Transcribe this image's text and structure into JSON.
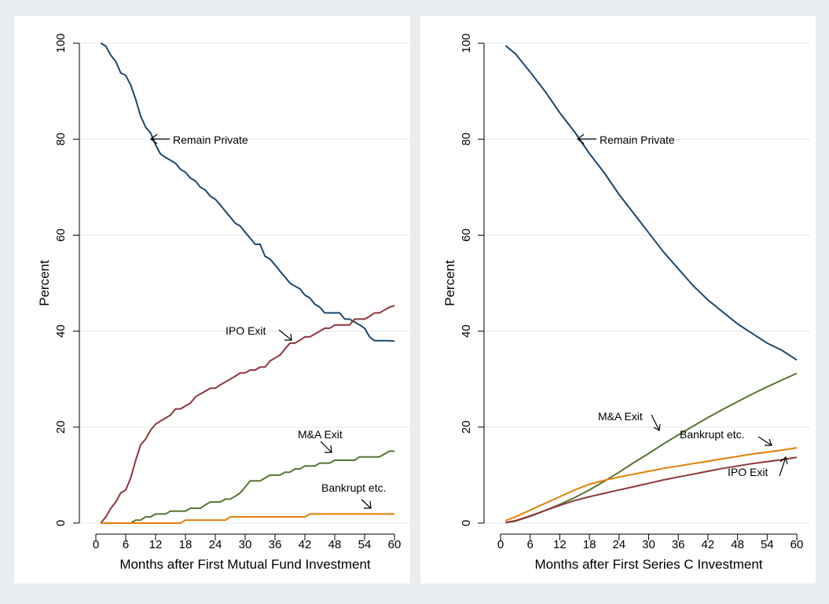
{
  "colors": {
    "background": "#e8edf1",
    "panel": "#ffffff",
    "grid": "#e8edf1",
    "remain_private": "#1a476f",
    "ipo_exit": "#90353b",
    "ma_exit": "#55752f",
    "bankrupt": "#e37e00"
  },
  "chart_data": [
    {
      "type": "line",
      "xlabel": "Months after First Mutual Fund Investment",
      "ylabel": "Percent",
      "xlim": [
        0,
        60
      ],
      "ylim": [
        0,
        100
      ],
      "xticks": [
        "0",
        "6",
        "12",
        "18",
        "24",
        "30",
        "36",
        "42",
        "48",
        "54",
        "60"
      ],
      "yticks": [
        "0",
        "20",
        "40",
        "60",
        "80",
        "100"
      ],
      "grid": true,
      "series": [
        {
          "name": "Remain Private",
          "color": "#1a476f",
          "x": [
            1,
            2,
            3,
            4,
            5,
            6,
            7,
            8,
            9,
            10,
            11,
            12,
            13,
            14,
            15,
            16,
            17,
            18,
            19,
            20,
            21,
            22,
            23,
            24,
            25,
            26,
            27,
            28,
            29,
            30,
            31,
            32,
            33,
            34,
            35,
            36,
            37,
            38,
            39,
            40,
            41,
            42,
            43,
            44,
            45,
            46,
            47,
            48,
            49,
            50,
            51,
            52,
            53,
            54,
            55,
            56,
            57,
            58,
            59,
            60
          ],
          "y": [
            100,
            99.4,
            97.5,
            96.2,
            93.8,
            93.3,
            91.3,
            88.3,
            84.8,
            82.5,
            81.3,
            78.8,
            76.9,
            76.2,
            75.6,
            75,
            73.7,
            73.1,
            71.9,
            71.3,
            70,
            69.4,
            68.1,
            67.5,
            66.3,
            65,
            63.8,
            62.5,
            61.9,
            60.6,
            59.4,
            58.1,
            58.1,
            55.6,
            55,
            53.8,
            52.5,
            51.3,
            50,
            49.4,
            48.8,
            47.5,
            46.9,
            45.6,
            45,
            43.8,
            43.8,
            43.8,
            43.8,
            42.5,
            42.5,
            41.9,
            41.3,
            40.6,
            38.8,
            38,
            38,
            38,
            38,
            37.9
          ],
          "label": "Remain Private"
        },
        {
          "name": "IPO Exit",
          "color": "#90353b",
          "x": [
            1,
            2,
            3,
            4,
            5,
            6,
            7,
            8,
            9,
            10,
            11,
            12,
            13,
            14,
            15,
            16,
            17,
            18,
            19,
            20,
            21,
            22,
            23,
            24,
            25,
            26,
            27,
            28,
            29,
            30,
            31,
            32,
            33,
            34,
            35,
            36,
            37,
            38,
            39,
            40,
            41,
            42,
            43,
            44,
            45,
            46,
            47,
            48,
            49,
            50,
            51,
            52,
            53,
            54,
            55,
            56,
            57,
            58,
            59,
            60
          ],
          "y": [
            0,
            1.3,
            3.1,
            4.4,
            6.3,
            6.9,
            9.4,
            13.1,
            16.3,
            17.5,
            19.4,
            20.6,
            21.3,
            21.9,
            22.5,
            23.8,
            23.8,
            24.4,
            25,
            26.3,
            26.9,
            27.5,
            28.1,
            28.1,
            28.8,
            29.4,
            30,
            30.6,
            31.3,
            31.3,
            31.9,
            31.9,
            32.5,
            32.5,
            33.8,
            34.4,
            35,
            36.3,
            37.5,
            37.5,
            38.1,
            38.8,
            38.8,
            39.4,
            40,
            40.6,
            40.6,
            41.3,
            41.3,
            41.3,
            41.3,
            42.5,
            42.5,
            42.5,
            43.1,
            43.8,
            43.8,
            44.4,
            45,
            45.3
          ],
          "label": "IPO Exit"
        },
        {
          "name": "M&A Exit",
          "color": "#55752f",
          "x": [
            1,
            2,
            3,
            4,
            5,
            6,
            7,
            8,
            9,
            10,
            11,
            12,
            13,
            14,
            15,
            16,
            17,
            18,
            19,
            20,
            21,
            22,
            23,
            24,
            25,
            26,
            27,
            28,
            29,
            30,
            31,
            32,
            33,
            34,
            35,
            36,
            37,
            38,
            39,
            40,
            41,
            42,
            43,
            44,
            45,
            46,
            47,
            48,
            49,
            50,
            51,
            52,
            53,
            54,
            55,
            56,
            57,
            58,
            59,
            60
          ],
          "y": [
            0,
            0,
            0,
            0,
            0,
            0,
            0,
            0.6,
            0.6,
            1.3,
            1.3,
            1.9,
            1.9,
            1.9,
            2.5,
            2.5,
            2.5,
            2.5,
            3.1,
            3.1,
            3.1,
            3.8,
            4.4,
            4.4,
            4.4,
            5,
            5,
            5.6,
            6.3,
            7.5,
            8.8,
            8.8,
            8.8,
            9.4,
            10,
            10,
            10,
            10.6,
            10.6,
            11.3,
            11.3,
            11.9,
            11.9,
            11.9,
            12.5,
            12.5,
            12.5,
            13.1,
            13.1,
            13.1,
            13.1,
            13.1,
            13.8,
            13.8,
            13.8,
            13.8,
            13.8,
            14.4,
            15,
            15
          ],
          "label": "M&A Exit"
        },
        {
          "name": "Bankrupt etc.",
          "color": "#e37e00",
          "x": [
            1,
            17,
            18,
            19,
            26,
            27,
            42,
            43,
            60
          ],
          "y": [
            0,
            0,
            0.6,
            0.6,
            0.6,
            1.3,
            1.3,
            1.9,
            1.9
          ],
          "label": "Bankrupt etc."
        }
      ]
    },
    {
      "type": "line",
      "xlabel": "Months after First Series C Investment",
      "ylabel": "Percent",
      "xlim": [
        0,
        60
      ],
      "ylim": [
        0,
        100
      ],
      "xticks": [
        "0",
        "6",
        "12",
        "18",
        "24",
        "30",
        "36",
        "42",
        "48",
        "54",
        "60"
      ],
      "yticks": [
        "0",
        "20",
        "40",
        "60",
        "80",
        "100"
      ],
      "grid": true,
      "series": [
        {
          "name": "Remain Private",
          "color": "#1a476f",
          "x": [
            1,
            3,
            6,
            9,
            12,
            15,
            18,
            21,
            24,
            27,
            30,
            33,
            36,
            39,
            42,
            45,
            48,
            51,
            54,
            57,
            60
          ],
          "y": [
            99.5,
            97.8,
            94,
            90,
            85.5,
            81.5,
            77,
            73,
            68.5,
            64.5,
            60.5,
            56.5,
            53,
            49.5,
            46.5,
            44,
            41.5,
            39.5,
            37.5,
            36,
            34
          ],
          "label": "Remain Private"
        },
        {
          "name": "M&A Exit",
          "color": "#55752f",
          "x": [
            1,
            3,
            6,
            9,
            12,
            15,
            18,
            21,
            24,
            27,
            30,
            33,
            36,
            39,
            42,
            45,
            48,
            51,
            54,
            57,
            60
          ],
          "y": [
            0.1,
            0.4,
            1.4,
            2.6,
            3.9,
            5.3,
            6.9,
            8.7,
            10.6,
            12.6,
            14.5,
            16.5,
            18.4,
            20.2,
            22,
            23.7,
            25.3,
            26.9,
            28.4,
            29.8,
            31.2
          ],
          "label": "M&A Exit"
        },
        {
          "name": "Bankrupt etc.",
          "color": "#e37e00",
          "x": [
            1,
            3,
            6,
            9,
            12,
            15,
            18,
            21,
            24,
            27,
            30,
            33,
            36,
            39,
            42,
            45,
            48,
            51,
            54,
            57,
            60
          ],
          "y": [
            0.5,
            1.3,
            2.7,
            4.1,
            5.5,
            6.9,
            8.1,
            8.9,
            9.6,
            10.2,
            10.8,
            11.4,
            11.9,
            12.4,
            12.9,
            13.4,
            13.9,
            14.4,
            14.8,
            15.2,
            15.7
          ],
          "label": "Bankrupt etc."
        },
        {
          "name": "IPO Exit",
          "color": "#90353b",
          "x": [
            1,
            3,
            6,
            9,
            12,
            15,
            18,
            21,
            24,
            27,
            30,
            33,
            36,
            39,
            42,
            45,
            48,
            51,
            54,
            57,
            60
          ],
          "y": [
            0.1,
            0.5,
            1.5,
            2.6,
            3.7,
            4.7,
            5.5,
            6.2,
            6.9,
            7.6,
            8.3,
            9,
            9.6,
            10.2,
            10.8,
            11.4,
            11.9,
            12.4,
            12.8,
            13.2,
            13.7
          ],
          "label": "IPO Exit"
        }
      ]
    }
  ]
}
